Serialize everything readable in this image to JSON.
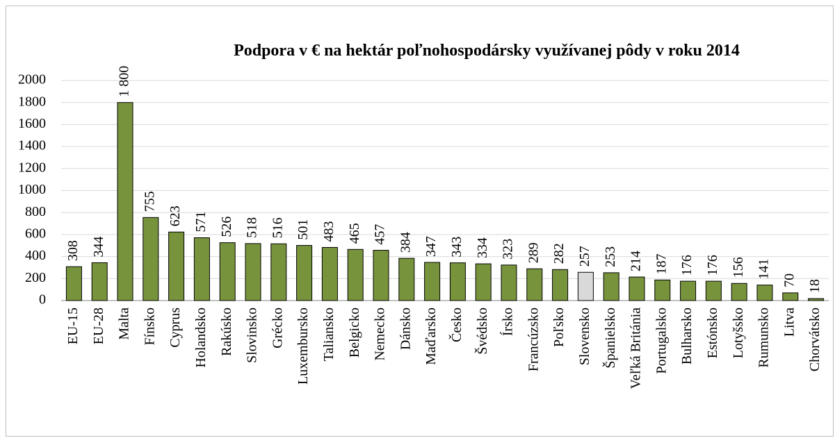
{
  "chart_data": {
    "type": "bar",
    "title": "Podpora v € na hektár poľnohospodársky využívanej pôdy v roku 2014",
    "categories": [
      "EU-15",
      "EU-28",
      "Malta",
      "Fínsko",
      "Cyprus",
      "Holandsko",
      "Rakúsko",
      "Slovinsko",
      "Grécko",
      "Luxembursko",
      "Taliansko",
      "Belgicko",
      "Nemecko",
      "Dánsko",
      "Maďarsko",
      "Česko",
      "Švédsko",
      "Írsko",
      "Francúzsko",
      "Poľsko",
      "Slovensko",
      "Španielsko",
      "Veľká Británia",
      "Portugalsko",
      "Bulharsko",
      "Estónsko",
      "Lotyšsko",
      "Rumunsko",
      "Litva",
      "Chorvátsko"
    ],
    "values": [
      308,
      344,
      1800,
      755,
      623,
      571,
      526,
      518,
      516,
      501,
      483,
      465,
      457,
      384,
      347,
      343,
      334,
      323,
      289,
      282,
      257,
      253,
      214,
      187,
      176,
      176,
      156,
      141,
      70,
      18
    ],
    "value_labels": [
      "308",
      "344",
      "1 800",
      "755",
      "623",
      "571",
      "526",
      "518",
      "516",
      "501",
      "483",
      "465",
      "457",
      "384",
      "347",
      "343",
      "334",
      "323",
      "289",
      "282",
      "257",
      "253",
      "214",
      "187",
      "176",
      "176",
      "156",
      "141",
      "70",
      "18"
    ],
    "colors": [
      "#77933c",
      "#77933c",
      "#77933c",
      "#77933c",
      "#77933c",
      "#77933c",
      "#77933c",
      "#77933c",
      "#77933c",
      "#77933c",
      "#77933c",
      "#77933c",
      "#77933c",
      "#77933c",
      "#77933c",
      "#77933c",
      "#77933c",
      "#77933c",
      "#77933c",
      "#77933c",
      "#d9d9d9",
      "#77933c",
      "#77933c",
      "#77933c",
      "#77933c",
      "#77933c",
      "#77933c",
      "#77933c",
      "#77933c",
      "#77933c"
    ],
    "ylim": [
      0,
      2000
    ],
    "yticks": [
      0,
      200,
      400,
      600,
      800,
      1000,
      1200,
      1400,
      1600,
      1800,
      2000
    ],
    "grid": true
  }
}
